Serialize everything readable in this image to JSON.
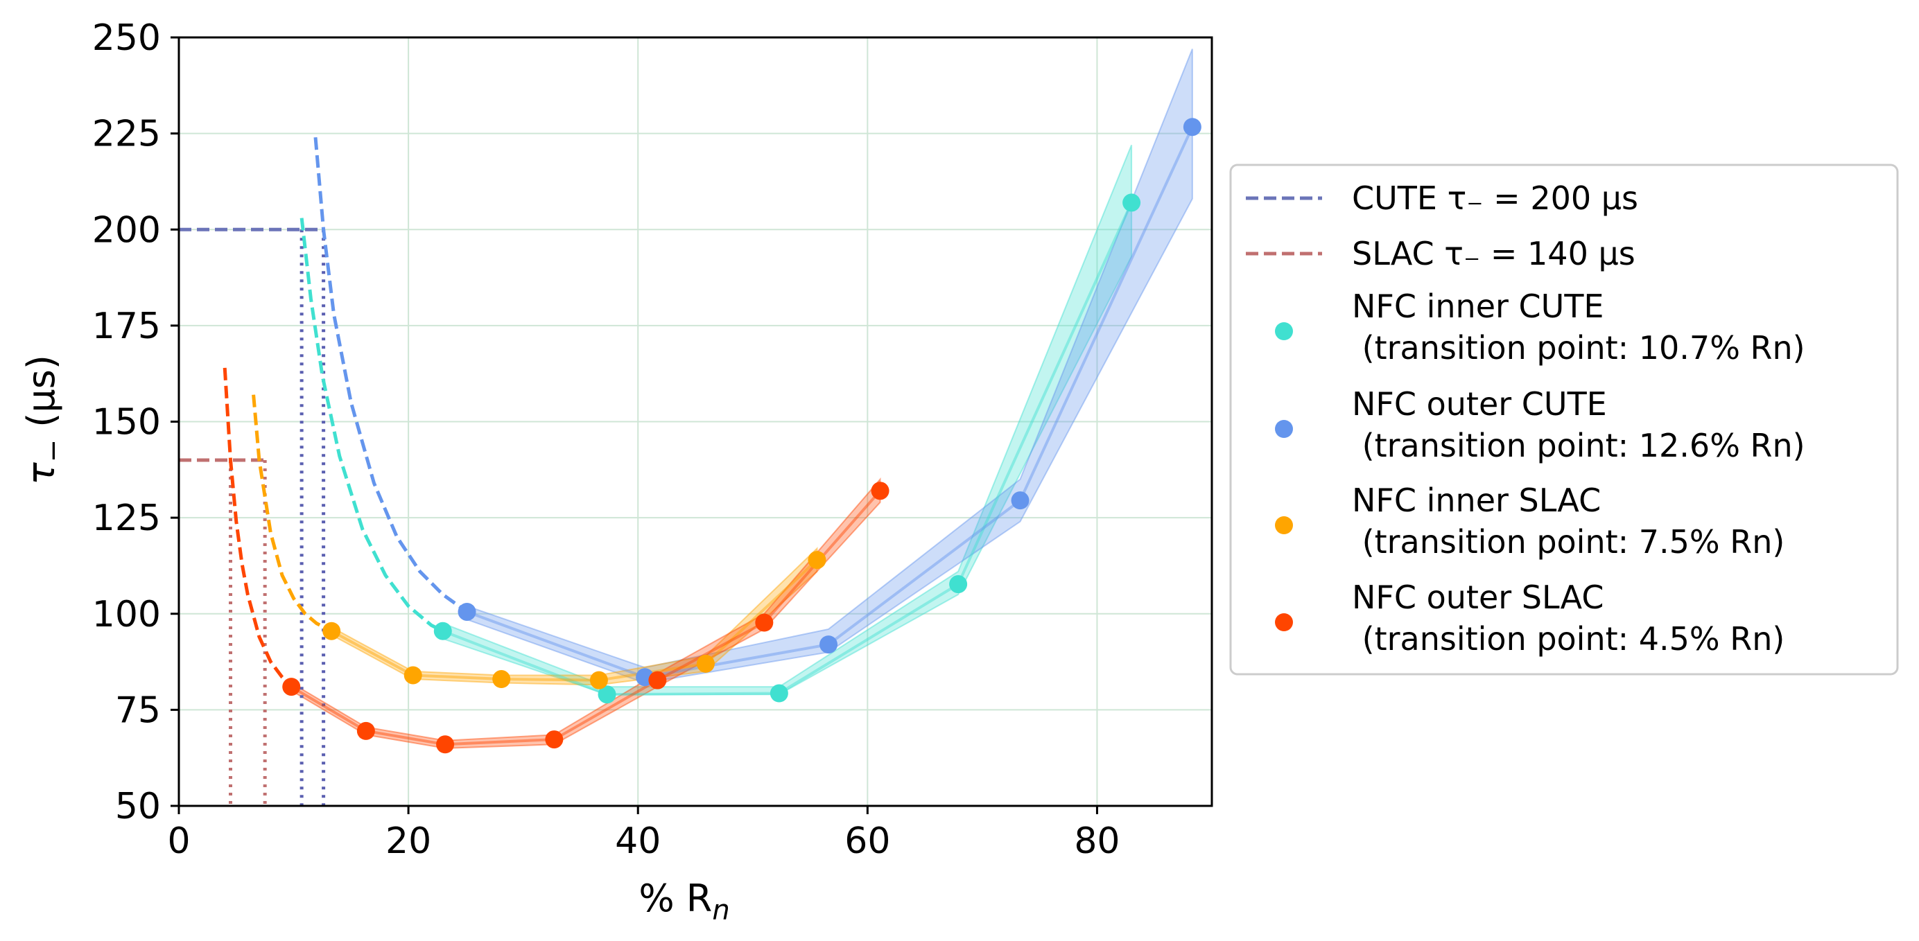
{
  "chart_data": {
    "type": "scatter",
    "xlabel": "% R",
    "xlabel_sub": "n",
    "ylabel": "τ",
    "ylabel_sub": "−",
    "ylabel_unit": "(μs)",
    "xlim": [
      0,
      90
    ],
    "ylim": [
      50,
      250
    ],
    "xticks": [
      0,
      20,
      40,
      60,
      80
    ],
    "yticks": [
      50,
      75,
      100,
      125,
      150,
      175,
      200,
      225,
      250
    ],
    "grid": true,
    "legend_position": "center-right outside",
    "reference_lines": [
      {
        "name": "CUTE τ₋ = 200 μs",
        "label": "CUTE τ₋ = 200 µs",
        "y": 200,
        "x_end": 12.6,
        "color": "#6b74b8"
      },
      {
        "name": "SLAC τ₋ = 140 μs",
        "label": "SLAC τ₋ = 140 µs",
        "y": 140,
        "x_end": 7.5,
        "color": "#c07070"
      }
    ],
    "transition_lines": [
      {
        "x": 10.7,
        "y_top": 200,
        "color": "#5a5fb0"
      },
      {
        "x": 12.6,
        "y_top": 200,
        "color": "#5a5fb0"
      },
      {
        "x": 4.5,
        "y_top": 140,
        "color": "#c07070"
      },
      {
        "x": 7.5,
        "y_top": 140,
        "color": "#c07070"
      }
    ],
    "series": [
      {
        "name": "NFC inner CUTE",
        "label_line1": "NFC inner CUTE",
        "label_line2": " (transition point: 10.7% Rn)",
        "color": "#40e0d0",
        "x": [
          23.0,
          37.3,
          52.3,
          67.9,
          83.0
        ],
        "y": [
          95.5,
          79.0,
          79.3,
          107.7,
          207.0
        ],
        "band_upper": [
          97.5,
          81.0,
          81.0,
          111.0,
          222.0
        ],
        "band_lower": [
          93.5,
          79.0,
          79.0,
          105.0,
          193.0
        ],
        "fit_x": [
          10.7,
          11.5,
          12.5,
          14.0,
          16.0,
          18.0,
          20.0,
          22.0,
          23.0
        ],
        "fit_y": [
          203.0,
          182.0,
          162.0,
          141.0,
          122.0,
          110.0,
          102.0,
          97.0,
          95.5
        ]
      },
      {
        "name": "NFC outer CUTE",
        "label_line1": "NFC outer CUTE",
        "label_line2": " (transition point: 12.6% Rn)",
        "color": "#6495ed",
        "x": [
          25.1,
          40.6,
          56.6,
          73.3,
          88.3
        ],
        "y": [
          100.5,
          83.5,
          92.0,
          129.5,
          226.7
        ],
        "band_upper": [
          102.0,
          86.0,
          96.0,
          135.0,
          247.0
        ],
        "band_lower": [
          98.5,
          82.0,
          90.0,
          124.0,
          208.0
        ],
        "fit_x": [
          11.9,
          12.6,
          13.5,
          15.0,
          17.0,
          19.0,
          21.0,
          23.0,
          25.1
        ],
        "fit_y": [
          224.0,
          200.0,
          178.0,
          155.0,
          134.0,
          120.0,
          111.0,
          105.0,
          100.5
        ]
      },
      {
        "name": "NFC inner SLAC",
        "label_line1": "NFC inner SLAC",
        "label_line2": " (transition point: 7.5% Rn)",
        "color": "#ffa500",
        "x": [
          13.3,
          20.4,
          28.1,
          36.6,
          45.9,
          55.6
        ],
        "y": [
          95.5,
          84.0,
          83.0,
          82.7,
          87.0,
          114.0
        ],
        "band_upper": [
          96.5,
          85.0,
          84.0,
          84.0,
          89.0,
          117.0
        ],
        "band_lower": [
          94.5,
          83.0,
          82.0,
          81.5,
          85.0,
          111.0
        ],
        "fit_x": [
          6.5,
          7.0,
          8.0,
          9.0,
          10.0,
          11.0,
          12.0,
          13.3
        ],
        "fit_y": [
          157.0,
          140.0,
          121.0,
          110.0,
          104.0,
          100.0,
          97.5,
          95.5
        ]
      },
      {
        "name": "NFC outer SLAC",
        "label_line1": "NFC outer SLAC",
        "label_line2": " (transition point: 4.5% Rn)",
        "color": "#ff4500",
        "x": [
          9.8,
          16.3,
          23.2,
          32.7,
          41.7,
          51.0,
          61.1
        ],
        "y": [
          81.0,
          69.5,
          66.0,
          67.3,
          82.7,
          97.7,
          132.0
        ],
        "band_upper": [
          82.0,
          70.5,
          67.0,
          68.5,
          84.5,
          100.0,
          135.0
        ],
        "band_lower": [
          80.0,
          68.5,
          65.0,
          66.0,
          81.0,
          96.0,
          129.0
        ],
        "fit_x": [
          4.0,
          4.5,
          5.0,
          5.5,
          6.0,
          7.0,
          8.0,
          9.0,
          9.8
        ],
        "fit_y": [
          164.0,
          140.0,
          124.0,
          113.0,
          105.0,
          94.0,
          87.5,
          83.5,
          81.0
        ]
      }
    ]
  }
}
